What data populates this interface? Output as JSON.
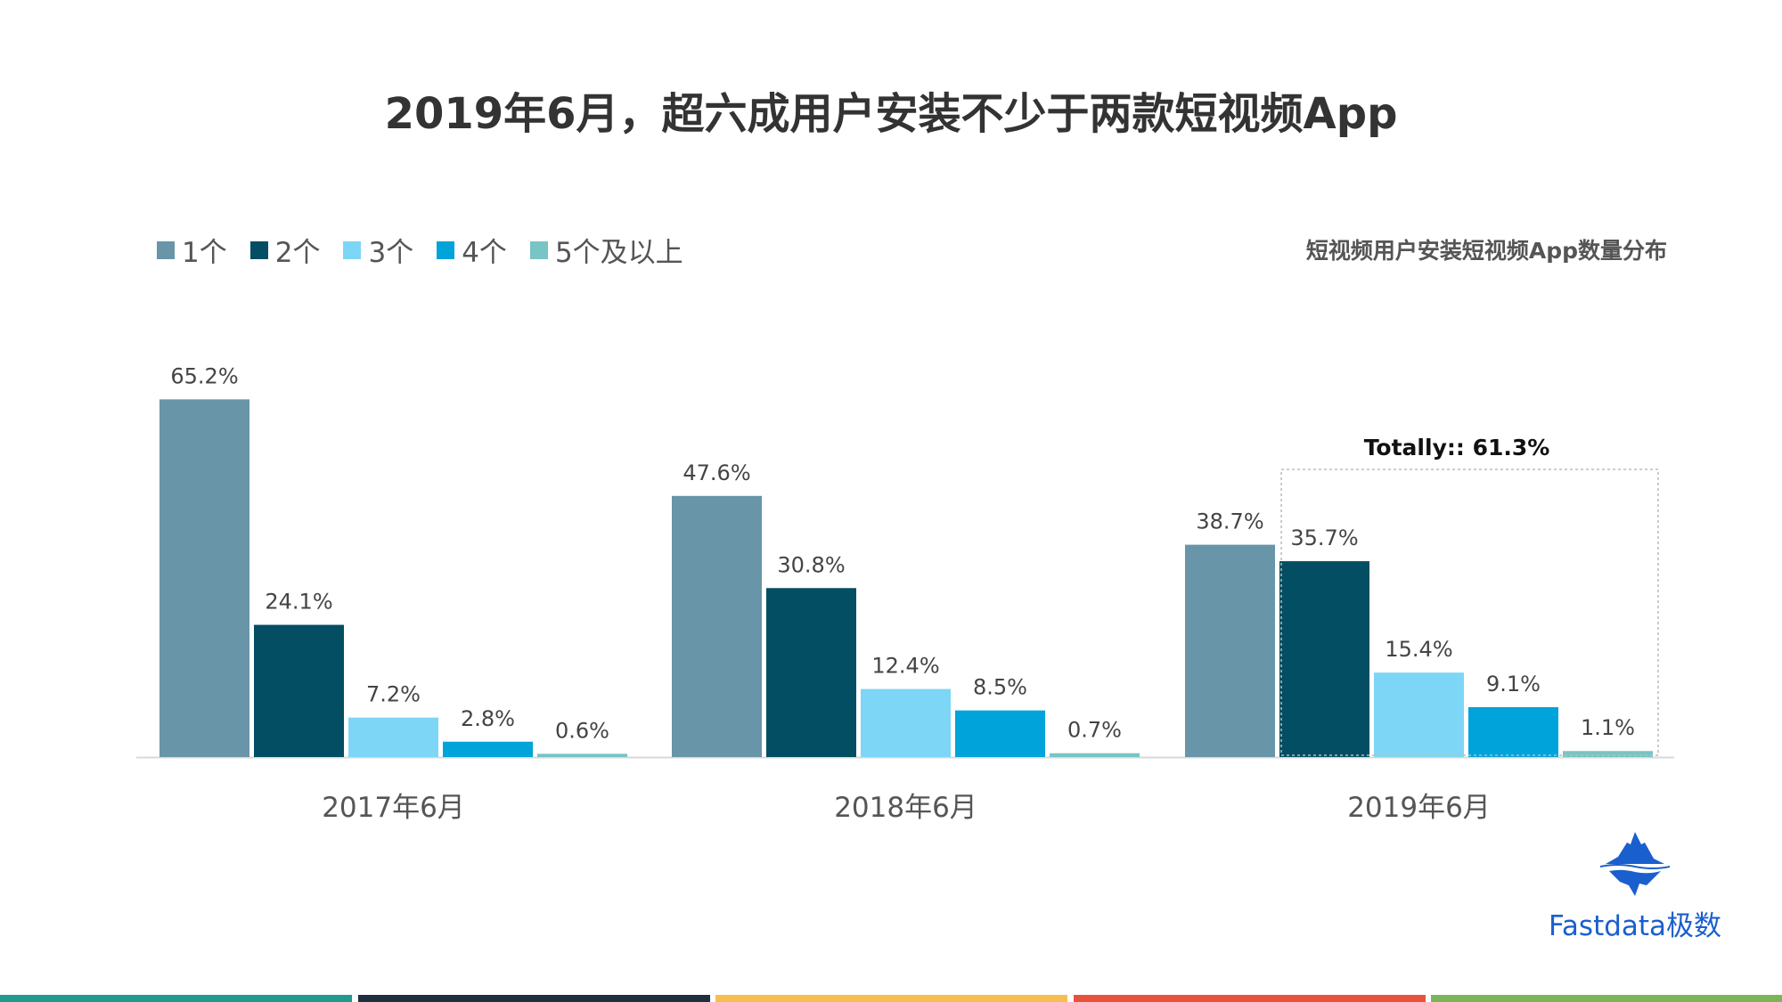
{
  "chart_data": {
    "type": "bar",
    "title": "2019年6月，超六成用户安装不少于两款短视频App",
    "subtitle": "短视频用户安装短视频App数量分布",
    "categories": [
      "2017年6月",
      "2018年6月",
      "2019年6月"
    ],
    "series": [
      {
        "name": "1个",
        "color": "#6895a8",
        "values": [
          65.2,
          47.6,
          38.7
        ]
      },
      {
        "name": "2个",
        "color": "#034e63",
        "values": [
          24.1,
          30.8,
          35.7
        ]
      },
      {
        "name": "3个",
        "color": "#7dd6f5",
        "values": [
          7.2,
          12.4,
          15.4
        ]
      },
      {
        "name": "4个",
        "color": "#00a3da",
        "values": [
          2.8,
          8.5,
          9.1
        ]
      },
      {
        "name": "5个及以上",
        "color": "#79c4c4",
        "values": [
          0.6,
          0.7,
          1.1
        ]
      }
    ],
    "value_suffix": "%",
    "ylim": [
      0,
      70
    ],
    "grid": false,
    "legend": "top-left",
    "annotation": "Totally::  61.3%"
  },
  "logo": {
    "text": "Fastdata极数",
    "color": "#1a5fce"
  },
  "footer_stripes": [
    "#1f9a8e",
    "#1e2f3f",
    "#f5bf4f",
    "#e8523c",
    "#7cb45a"
  ]
}
